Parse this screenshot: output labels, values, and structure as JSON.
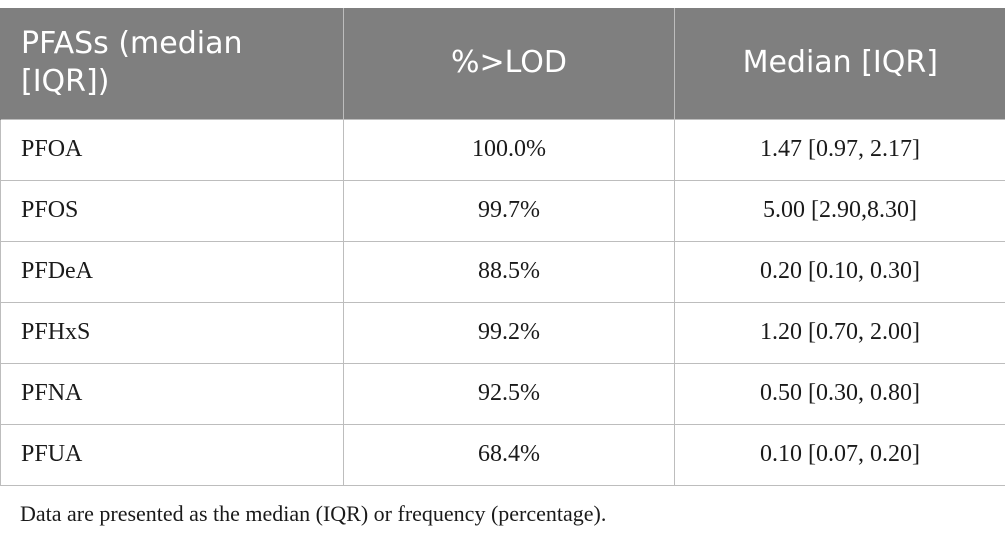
{
  "table": {
    "headers": [
      "PFASs (median [IQR])",
      "%>LOD",
      "Median [IQR]"
    ],
    "rows": [
      [
        "PFOA",
        "100.0%",
        "1.47 [0.97, 2.17]"
      ],
      [
        "PFOS",
        "99.7%",
        "5.00 [2.90,8.30]"
      ],
      [
        "PFDeA",
        "88.5%",
        "0.20 [0.10, 0.30]"
      ],
      [
        "PFHxS",
        "99.2%",
        "1.20 [0.70, 2.00]"
      ],
      [
        "PFNA",
        "92.5%",
        "0.50 [0.30, 0.80]"
      ],
      [
        "PFUA",
        "68.4%",
        "0.10 [0.07, 0.20]"
      ]
    ],
    "header_color": "#7f7f7f"
  },
  "footnote": "Data are presented as the median (IQR) or frequency (percentage)."
}
